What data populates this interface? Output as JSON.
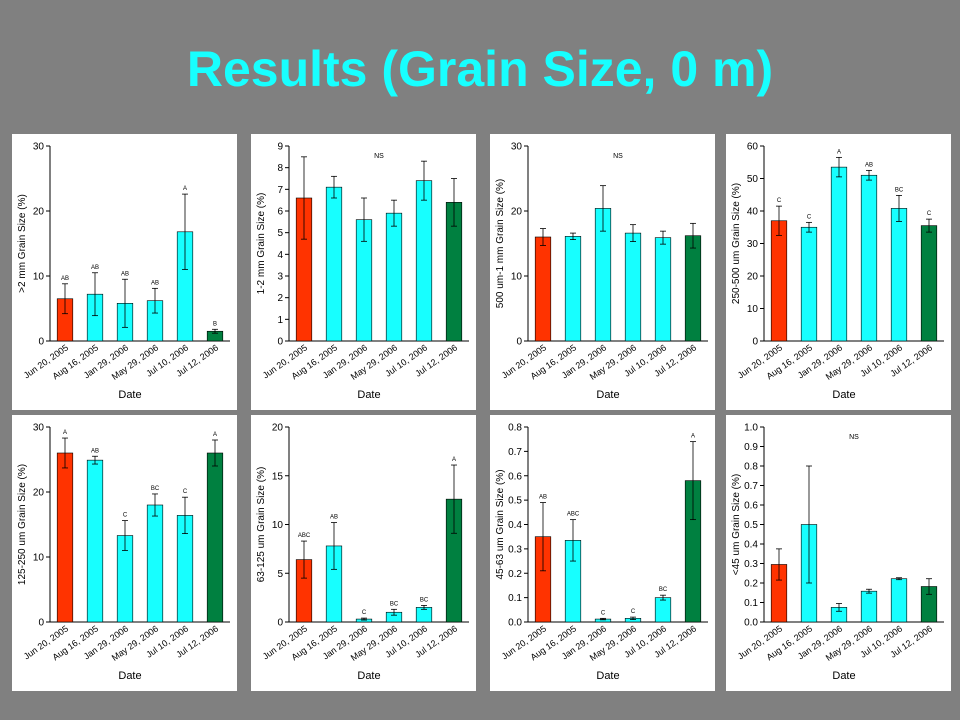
{
  "slide": {
    "title": "Results (Grain Size, 0 m)"
  },
  "chart_data": [
    {
      "type": "bar",
      "categories": [
        "Jun 20, 2005",
        "Aug 16, 2005",
        "Jan 29, 2006",
        "May 29, 2006",
        "Jul 10, 2006",
        "Jul 12, 2006"
      ],
      "values": [
        6.5,
        7.2,
        5.8,
        6.2,
        16.8,
        1.5
      ],
      "errors": [
        2.3,
        3.3,
        3.7,
        1.9,
        5.8,
        0.3
      ],
      "letters": [
        "AB",
        "AB",
        "AB",
        "AB",
        "A",
        "B"
      ],
      "ylabel": ">2 mm Grain Size (%)",
      "xlabel": "Date",
      "ylim": [
        0,
        30
      ],
      "yticks": [
        "0",
        "10",
        "20",
        "30"
      ],
      "colors": [
        "#ff3300",
        "#17ffff",
        "#17ffff",
        "#17ffff",
        "#17ffff",
        "#008040"
      ]
    },
    {
      "type": "bar",
      "categories": [
        "Jun 20, 2005",
        "Aug 16, 2005",
        "Jan 29, 2006",
        "May 29, 2006",
        "Jul 10, 2006",
        "Jul 12, 2006"
      ],
      "values": [
        6.6,
        7.1,
        5.6,
        5.9,
        7.4,
        6.4
      ],
      "errors": [
        1.9,
        0.5,
        1.0,
        0.6,
        0.9,
        1.1
      ],
      "letters": [
        "",
        "",
        "",
        "",
        "",
        ""
      ],
      "note": "NS",
      "ylabel": "1-2 mm Grain Size (%)",
      "xlabel": "Date",
      "ylim": [
        0,
        9
      ],
      "yticks": [
        "0",
        "1",
        "2",
        "3",
        "4",
        "5",
        "6",
        "7",
        "8",
        "9"
      ],
      "colors": [
        "#ff3300",
        "#17ffff",
        "#17ffff",
        "#17ffff",
        "#17ffff",
        "#008040"
      ]
    },
    {
      "type": "bar",
      "categories": [
        "Jun 20, 2005",
        "Aug 16, 2005",
        "Jan 29, 2006",
        "May 29, 2006",
        "Jul 10, 2006",
        "Jul 12, 2006"
      ],
      "values": [
        16.0,
        16.1,
        20.4,
        16.6,
        15.9,
        16.2
      ],
      "errors": [
        1.3,
        0.5,
        3.5,
        1.3,
        1.0,
        1.9
      ],
      "letters": [
        "",
        "",
        "",
        "",
        "",
        ""
      ],
      "note": "NS",
      "ylabel": "500 um-1 mm Grain Size (%)",
      "xlabel": "Date",
      "ylim": [
        0,
        30
      ],
      "yticks": [
        "0",
        "10",
        "20",
        "30"
      ],
      "colors": [
        "#ff3300",
        "#17ffff",
        "#17ffff",
        "#17ffff",
        "#17ffff",
        "#008040"
      ]
    },
    {
      "type": "bar",
      "categories": [
        "Jun 20, 2005",
        "Aug 16, 2005",
        "Jan 29, 2006",
        "May 29, 2006",
        "Jul 10, 2006",
        "Jul 12, 2006"
      ],
      "values": [
        37.0,
        35.0,
        53.5,
        51.0,
        40.8,
        35.5
      ],
      "errors": [
        4.5,
        1.5,
        3.0,
        1.5,
        4.0,
        2.0
      ],
      "letters": [
        "C",
        "C",
        "A",
        "AB",
        "BC",
        "C"
      ],
      "ylabel": "250-500 um Grain Size (%)",
      "xlabel": "Date",
      "ylim": [
        0,
        60
      ],
      "yticks": [
        "0",
        "10",
        "20",
        "30",
        "40",
        "50",
        "60"
      ],
      "colors": [
        "#ff3300",
        "#17ffff",
        "#17ffff",
        "#17ffff",
        "#17ffff",
        "#008040"
      ]
    },
    {
      "type": "bar",
      "categories": [
        "Jun 20, 2005",
        "Aug 16, 2005",
        "Jan 29, 2006",
        "May 29, 2006",
        "Jul 10, 2006",
        "Jul 12, 2006"
      ],
      "values": [
        26.0,
        24.9,
        13.3,
        18.0,
        16.4,
        26.0
      ],
      "errors": [
        2.3,
        0.6,
        2.3,
        1.7,
        2.8,
        2.0
      ],
      "letters": [
        "A",
        "AB",
        "C",
        "BC",
        "C",
        "A"
      ],
      "ylabel": "125-250 um Grain Size (%)",
      "xlabel": "Date",
      "ylim": [
        0,
        30
      ],
      "yticks": [
        "0",
        "10",
        "20",
        "30"
      ],
      "colors": [
        "#ff3300",
        "#17ffff",
        "#17ffff",
        "#17ffff",
        "#17ffff",
        "#008040"
      ]
    },
    {
      "type": "bar",
      "categories": [
        "Jun 20, 2005",
        "Aug 16, 2005",
        "Jan 29, 2006",
        "May 29, 2006",
        "Jul 10, 2006",
        "Jul 12, 2006"
      ],
      "values": [
        6.4,
        7.8,
        0.3,
        1.0,
        1.5,
        12.6
      ],
      "errors": [
        1.9,
        2.4,
        0.1,
        0.3,
        0.2,
        3.5
      ],
      "letters": [
        "ABC",
        "AB",
        "C",
        "BC",
        "BC",
        "A"
      ],
      "ylabel": "63-125 um Grain Size (%)",
      "xlabel": "Date",
      "ylim": [
        0,
        20
      ],
      "yticks": [
        "0",
        "5",
        "10",
        "15",
        "20"
      ],
      "colors": [
        "#ff3300",
        "#17ffff",
        "#17ffff",
        "#17ffff",
        "#17ffff",
        "#008040"
      ]
    },
    {
      "type": "bar",
      "categories": [
        "Jun 20, 2005",
        "Aug 16, 2005",
        "Jan 29, 2006",
        "May 29, 2006",
        "Jul 10, 2006",
        "Jul 12, 2006"
      ],
      "values": [
        0.35,
        0.335,
        0.012,
        0.015,
        0.1,
        0.58
      ],
      "errors": [
        0.14,
        0.085,
        0.003,
        0.005,
        0.01,
        0.16
      ],
      "letters": [
        "AB",
        "ABC",
        "C",
        "C",
        "BC",
        "A"
      ],
      "ylabel": "45-63 um Grain Size (%)",
      "xlabel": "Date",
      "ylim": [
        0,
        0.8
      ],
      "yticks": [
        "0.0",
        "0.1",
        "0.2",
        "0.3",
        "0.4",
        "0.5",
        "0.6",
        "0.7",
        "0.8"
      ],
      "colors": [
        "#ff3300",
        "#17ffff",
        "#17ffff",
        "#17ffff",
        "#17ffff",
        "#008040"
      ]
    },
    {
      "type": "bar",
      "categories": [
        "Jun 20, 2005",
        "Aug 16, 2005",
        "Jan 29, 2006",
        "May 29, 2006",
        "Jul 10, 2006",
        "Jul 12, 2006"
      ],
      "values": [
        0.295,
        0.5,
        0.075,
        0.158,
        0.222,
        0.182
      ],
      "errors": [
        0.08,
        0.3,
        0.02,
        0.01,
        0.005,
        0.04
      ],
      "letters": [
        "",
        "",
        "",
        "",
        "",
        ""
      ],
      "note": "NS",
      "ylabel": "<45 um Grain Size (%)",
      "xlabel": "Date",
      "ylim": [
        0,
        1.0
      ],
      "yticks": [
        "0.0",
        "0.1",
        "0.2",
        "0.3",
        "0.4",
        "0.5",
        "0.6",
        "0.7",
        "0.8",
        "0.9",
        "1.0"
      ],
      "colors": [
        "#ff3300",
        "#17ffff",
        "#17ffff",
        "#17ffff",
        "#17ffff",
        "#008040"
      ]
    }
  ]
}
